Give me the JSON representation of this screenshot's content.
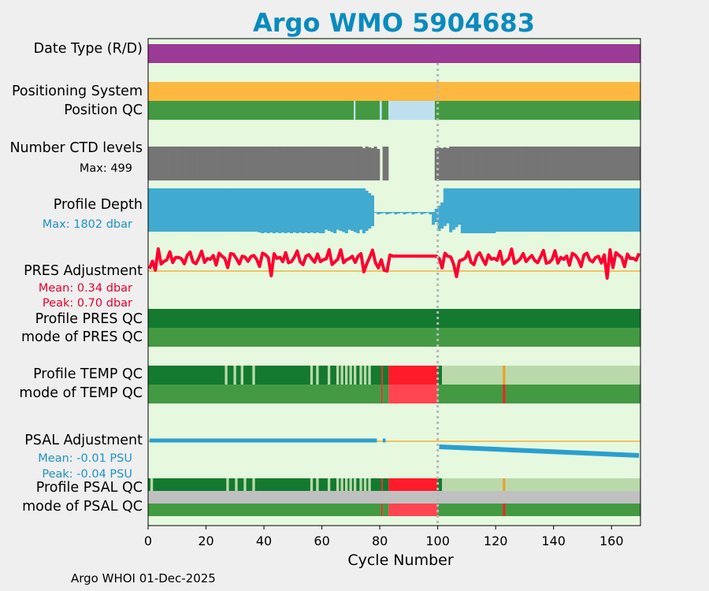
{
  "title": "Argo WMO 5904683",
  "footer": "Argo WHOI 01-Dec-2025",
  "labels": {
    "date_type": "Date Type (R/D)",
    "positioning_system": "Positioning System",
    "position_qc": "Position QC",
    "number_ctd_levels": "Number CTD levels",
    "ctd_max": "Max: 499",
    "profile_depth": "Profile Depth",
    "depth_max": "Max: 1802 dbar",
    "pres_adjustment": "PRES Adjustment",
    "pres_mean": "Mean: 0.34 dbar",
    "pres_peak": "Peak: 0.70 dbar",
    "profile_pres_qc": "Profile PRES QC",
    "mode_pres_qc": "mode of PRES QC",
    "profile_temp_qc": "Profile TEMP QC",
    "mode_temp_qc": "mode of TEMP QC",
    "psal_adjustment": "PSAL Adjustment",
    "psal_mean": "Mean: -0.01 PSU",
    "psal_peak": "Peak: -0.04 PSU",
    "profile_psal_qc": "Profile PSAL QC",
    "mode_psal_qc": "mode of PSAL QC"
  },
  "colors": {
    "title": "#0a8bbd",
    "plot_bg": "#e6f9df",
    "date_type": "#9b3b96",
    "positioning": "#fdb840",
    "qc_good": "#439a43",
    "qc_dark": "#137a2f",
    "qc_light": "#bad9ab",
    "qc_bad": "#fe1b2a",
    "qc_bad_light": "#ff4552",
    "qc_missing": "#bee0ee",
    "ctd": "#757575",
    "depth": "#41aad0",
    "pres_line": "#fe0030",
    "psal_line": "#2a9fcf",
    "zero_line": "#f4b13b",
    "orange": "#f59a18",
    "grey_mode": "#c0c0c0",
    "pres_text": "#e6002b",
    "psal_text": "#1d93c6"
  },
  "chart_data": {
    "type": "timeline",
    "xlabel": "Cycle Number",
    "xlim": [
      0,
      170
    ],
    "xticks": [
      0,
      20,
      40,
      60,
      80,
      100,
      120,
      140,
      160
    ],
    "marker_cycle": 100,
    "number_ctd_levels_max": 499,
    "profile_depth_max_dbar": 1802,
    "pres_adjustment_mean_dbar": 0.34,
    "pres_adjustment_peak_dbar": 0.7,
    "psal_adjustment_mean_psu": -0.01,
    "psal_adjustment_peak_psu": -0.04,
    "position_qc_missing_cycles": [
      [
        71,
        71.5
      ],
      [
        80,
        80.7
      ],
      [
        83,
        99
      ]
    ],
    "ctd_missing_cycles": [
      [
        80,
        80.7
      ],
      [
        83,
        99
      ]
    ],
    "temp_qc_bad_cycles": [
      [
        80.5,
        81
      ],
      [
        83,
        100
      ]
    ],
    "temp_qc_probably_good_cycles": [
      [
        101.5,
        170
      ]
    ],
    "psal_qc_bad_cycles": [
      [
        80.5,
        81
      ],
      [
        83,
        100
      ]
    ],
    "psal_qc_probably_good_cycles": [
      [
        101.5,
        170
      ]
    ],
    "qc_orange_cycle": 123
  }
}
